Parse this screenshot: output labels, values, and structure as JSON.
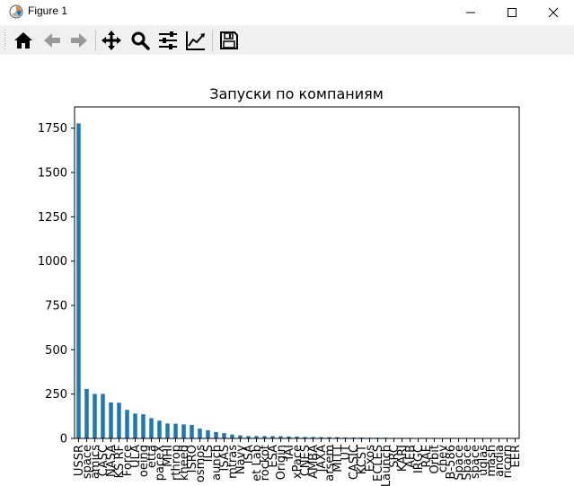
{
  "window": {
    "title": "Figure 1",
    "controls": [
      "minimize",
      "maximize",
      "close"
    ]
  },
  "toolbar": {
    "tools": [
      {
        "name": "home",
        "icon": "home-icon"
      },
      {
        "name": "back",
        "icon": "arrow-left-icon"
      },
      {
        "name": "forward",
        "icon": "arrow-right-icon"
      },
      {
        "name": "pan",
        "icon": "move-icon"
      },
      {
        "name": "zoom",
        "icon": "zoom-icon"
      },
      {
        "name": "subplots",
        "icon": "sliders-icon"
      },
      {
        "name": "edit",
        "icon": "chart-line-icon"
      },
      {
        "name": "save",
        "icon": "floppy-icon"
      }
    ]
  },
  "chart_data": {
    "type": "bar",
    "title": "Запуски по компаниям",
    "xlabel": "",
    "ylabel": "",
    "ylim": [
      0,
      1870
    ],
    "yticks": [
      0,
      250,
      500,
      750,
      1000,
      1250,
      1500,
      1750
    ],
    "grid": false,
    "bar_color": "#1f77b4",
    "categories": [
      "RVSN USSR",
      "Arianespace",
      "General Dynamics",
      "CASC",
      "NASA",
      "VKS RF",
      "US Air Force",
      "ULA",
      "Boeing",
      "Martin Marietta",
      "SpaceX",
      "MHI",
      "Northrop",
      "Lockheed",
      "ISRO",
      "Roscosmos",
      "ILS",
      "Sea Launch",
      "ISAS",
      "Kosmotras",
      "US Navy",
      "ISA",
      "Rocket Lab",
      "Eurockot",
      "ESA",
      "Blue Origin",
      "IAI",
      "ExPace",
      "CNES",
      "AMBA",
      "JAXA",
      "Starsem",
      "MITT",
      "UT",
      "CASIC",
      "KCST",
      "Exos",
      "CECLES",
      "Land Launch",
      "SRC",
      "KARI",
      "AEB",
      "IRGC",
      "RAE",
      "Virgin Orbit",
      "Khrunichev",
      "OKB-586",
      "i-Space",
      "OneSpace",
      "Landspace",
      "Douglas",
      "Yuzhmash",
      "Sandia",
      "Capricorn",
      "EER"
    ],
    "visible_tick_labels": [
      "USSR",
      "space",
      "amics",
      "CASC",
      "NASA",
      "KS RF",
      "Force",
      "ULA",
      "oeing",
      "etta",
      "paceX",
      "MHI",
      "rthrop",
      "kheed",
      "ISRO",
      "osmos",
      "ILS",
      "aunch",
      "ISAS",
      "mtras",
      "Navy",
      "ISA",
      "et Lab",
      "rockot",
      "ESA",
      "Origin",
      "IAI",
      "xPace",
      "CNES",
      "AMBA",
      "JAXA",
      "arsem",
      "MITT",
      "UT",
      "CASIC",
      "KCST",
      "Exos",
      "ECLES",
      "e Launch",
      "SRC",
      "KARI",
      "AEB",
      "IRGC",
      "RAE",
      "Orbit",
      "chev",
      "B-586",
      "Space",
      "Space",
      "space",
      "uglas",
      "mash",
      "andia",
      "ricorn",
      "EER"
    ],
    "values": [
      1777,
      279,
      251,
      251,
      203,
      201,
      161,
      140,
      136,
      114,
      100,
      84,
      83,
      79,
      76,
      55,
      46,
      36,
      30,
      22,
      17,
      13,
      13,
      13,
      13,
      12,
      11,
      10,
      8,
      8,
      7,
      7,
      7,
      5,
      5,
      5,
      4,
      4,
      4,
      3,
      3,
      3,
      1,
      2,
      2,
      2,
      2,
      1,
      1,
      1,
      1,
      1,
      1,
      1,
      1
    ]
  }
}
